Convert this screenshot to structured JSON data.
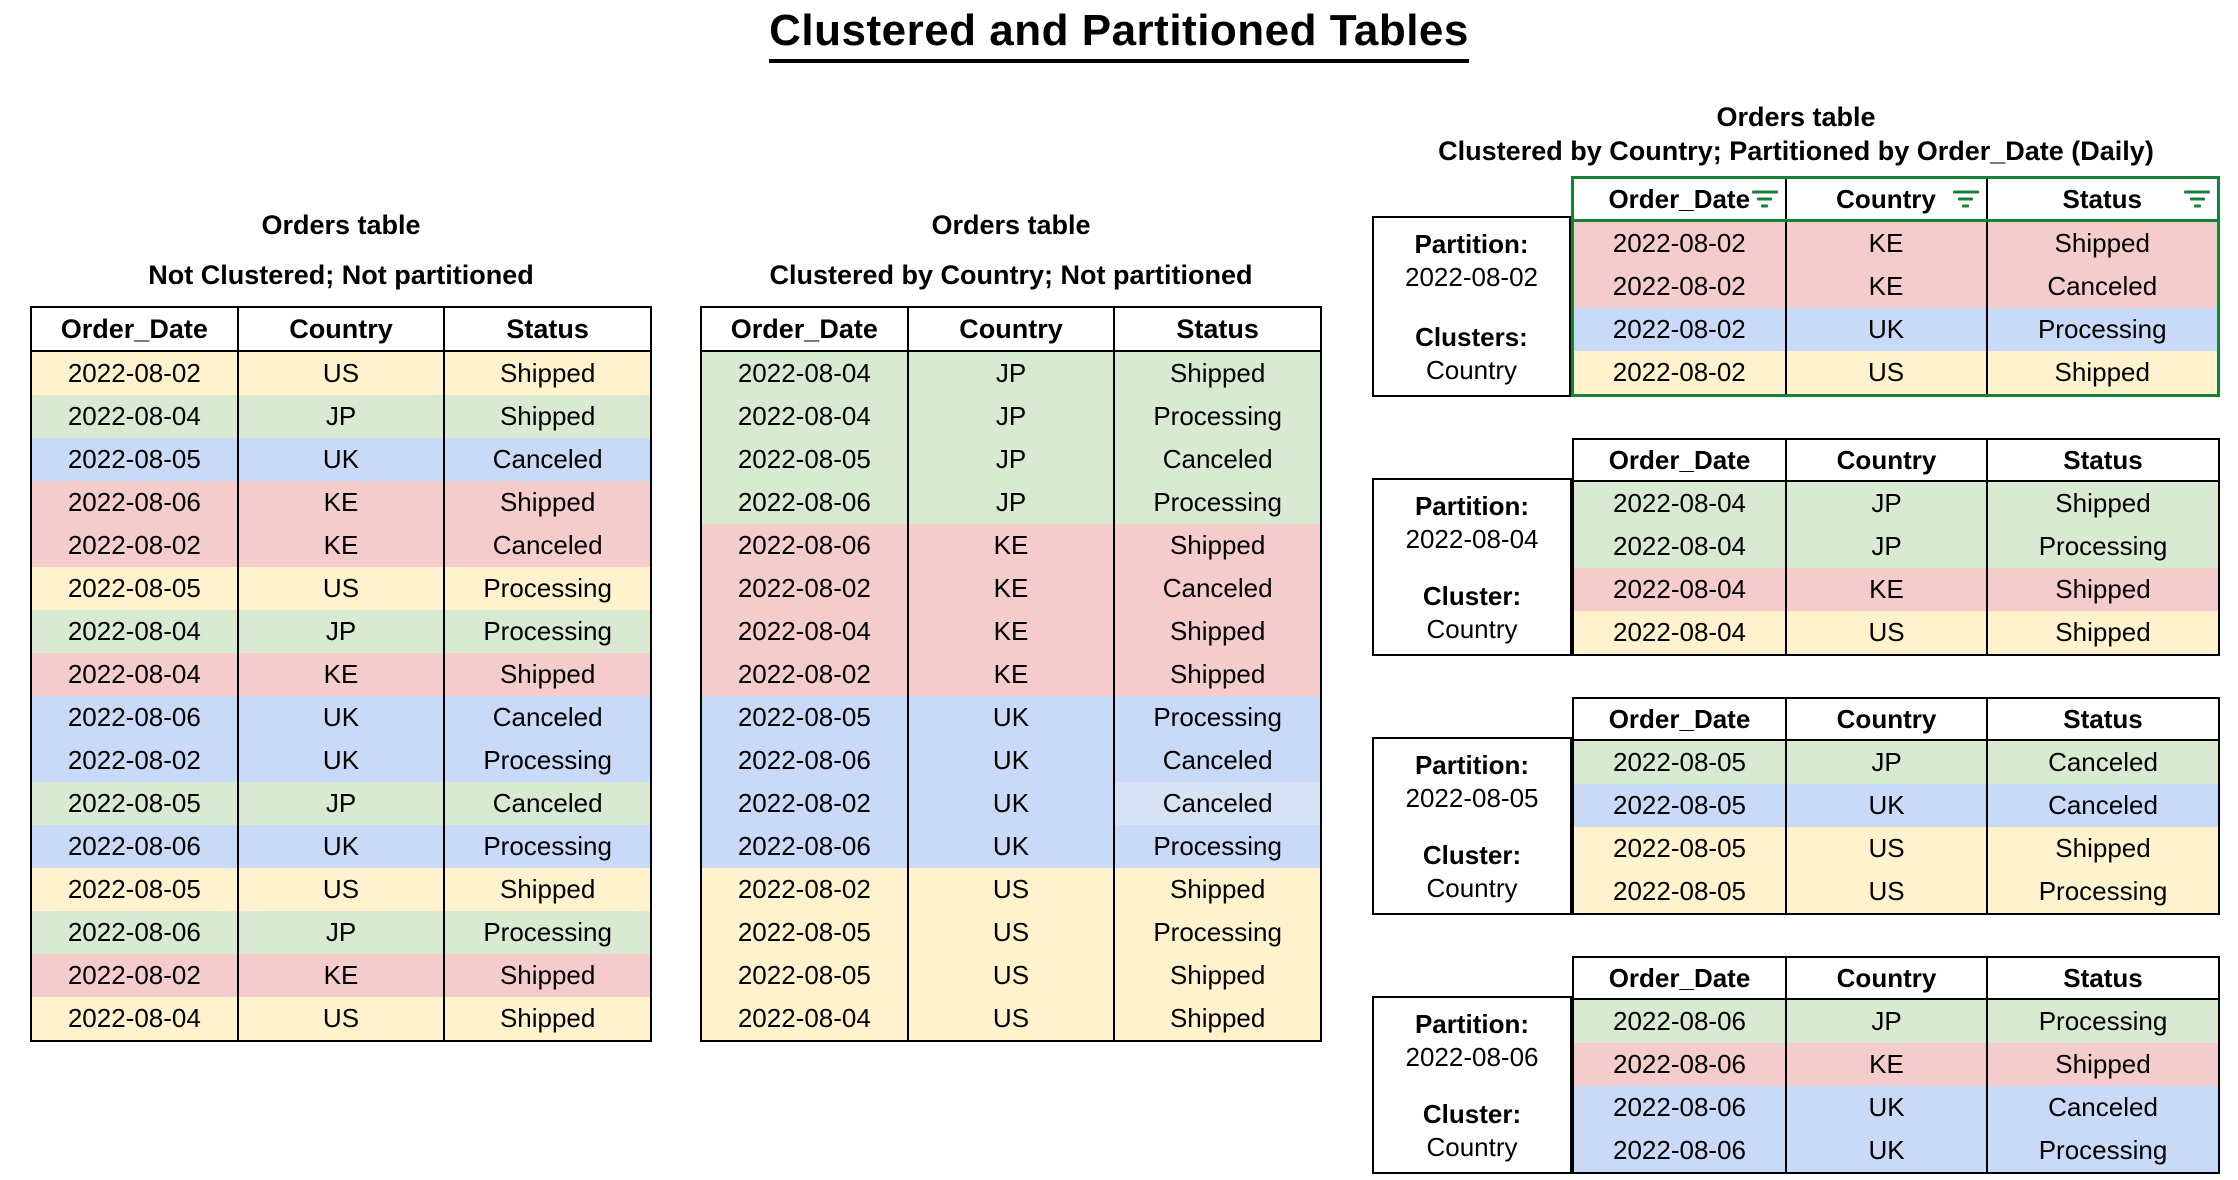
{
  "title": "Clustered and Partitioned Tables",
  "columns": [
    "Order_Date",
    "Country",
    "Status"
  ],
  "country_colors": {
    "US": "#fff2cc",
    "JP": "#d9ead3",
    "UK": "#c9daf8",
    "KE": "#f4cccc"
  },
  "accent_green": "#188038",
  "left_table": {
    "title": "Orders table",
    "subtitle": "Not Clustered; Not partitioned",
    "rows": [
      [
        "2022-08-02",
        "US",
        "Shipped"
      ],
      [
        "2022-08-04",
        "JP",
        "Shipped"
      ],
      [
        "2022-08-05",
        "UK",
        "Canceled"
      ],
      [
        "2022-08-06",
        "KE",
        "Shipped"
      ],
      [
        "2022-08-02",
        "KE",
        "Canceled"
      ],
      [
        "2022-08-05",
        "US",
        "Processing"
      ],
      [
        "2022-08-04",
        "JP",
        "Processing"
      ],
      [
        "2022-08-04",
        "KE",
        "Shipped"
      ],
      [
        "2022-08-06",
        "UK",
        "Canceled"
      ],
      [
        "2022-08-02",
        "UK",
        "Processing"
      ],
      [
        "2022-08-05",
        "JP",
        "Canceled"
      ],
      [
        "2022-08-06",
        "UK",
        "Processing"
      ],
      [
        "2022-08-05",
        "US",
        "Shipped"
      ],
      [
        "2022-08-06",
        "JP",
        "Processing"
      ],
      [
        "2022-08-02",
        "KE",
        "Shipped"
      ],
      [
        "2022-08-04",
        "US",
        "Shipped"
      ]
    ]
  },
  "middle_table": {
    "title": "Orders table",
    "subtitle": "Clustered by Country; Not partitioned",
    "rows": [
      [
        "2022-08-04",
        "JP",
        "Shipped"
      ],
      [
        "2022-08-04",
        "JP",
        "Processing"
      ],
      [
        "2022-08-05",
        "JP",
        "Canceled"
      ],
      [
        "2022-08-06",
        "JP",
        "Processing"
      ],
      [
        "2022-08-06",
        "KE",
        "Shipped"
      ],
      [
        "2022-08-02",
        "KE",
        "Canceled"
      ],
      [
        "2022-08-04",
        "KE",
        "Shipped"
      ],
      [
        "2022-08-02",
        "KE",
        "Shipped"
      ],
      [
        "2022-08-05",
        "UK",
        "Processing"
      ],
      [
        "2022-08-06",
        "UK",
        "Canceled"
      ],
      [
        "2022-08-02",
        "UK",
        "Canceled"
      ],
      [
        "2022-08-06",
        "UK",
        "Processing"
      ],
      [
        "2022-08-02",
        "US",
        "Shipped"
      ],
      [
        "2022-08-05",
        "US",
        "Processing"
      ],
      [
        "2022-08-05",
        "US",
        "Shipped"
      ],
      [
        "2022-08-04",
        "US",
        "Shipped"
      ]
    ],
    "cell_overrides": [
      {
        "row": 10,
        "col": 2,
        "color": "#d7e2f5"
      }
    ]
  },
  "right_section": {
    "title": "Orders table",
    "subtitle": "Clustered by Country; Partitioned by Order_Date (Daily)",
    "partitions": [
      {
        "partition_label": "Partition:",
        "partition_value": "2022-08-02",
        "cluster_label": "Clusters:",
        "cluster_value": "Country",
        "filtered": true,
        "rows": [
          [
            "2022-08-02",
            "KE",
            "Shipped"
          ],
          [
            "2022-08-02",
            "KE",
            "Canceled"
          ],
          [
            "2022-08-02",
            "UK",
            "Processing"
          ],
          [
            "2022-08-02",
            "US",
            "Shipped"
          ]
        ]
      },
      {
        "partition_label": "Partition:",
        "partition_value": "2022-08-04",
        "cluster_label": "Cluster:",
        "cluster_value": "Country",
        "filtered": false,
        "rows": [
          [
            "2022-08-04",
            "JP",
            "Shipped"
          ],
          [
            "2022-08-04",
            "JP",
            "Processing"
          ],
          [
            "2022-08-04",
            "KE",
            "Shipped"
          ],
          [
            "2022-08-04",
            "US",
            "Shipped"
          ]
        ]
      },
      {
        "partition_label": "Partition:",
        "partition_value": "2022-08-05",
        "cluster_label": "Cluster:",
        "cluster_value": "Country",
        "filtered": false,
        "rows": [
          [
            "2022-08-05",
            "JP",
            "Canceled"
          ],
          [
            "2022-08-05",
            "UK",
            "Canceled"
          ],
          [
            "2022-08-05",
            "US",
            "Shipped"
          ],
          [
            "2022-08-05",
            "US",
            "Processing"
          ]
        ]
      },
      {
        "partition_label": "Partition:",
        "partition_value": "2022-08-06",
        "cluster_label": "Cluster:",
        "cluster_value": "Country",
        "filtered": false,
        "rows": [
          [
            "2022-08-06",
            "JP",
            "Processing"
          ],
          [
            "2022-08-06",
            "KE",
            "Shipped"
          ],
          [
            "2022-08-06",
            "UK",
            "Canceled"
          ],
          [
            "2022-08-06",
            "UK",
            "Processing"
          ]
        ]
      }
    ]
  }
}
